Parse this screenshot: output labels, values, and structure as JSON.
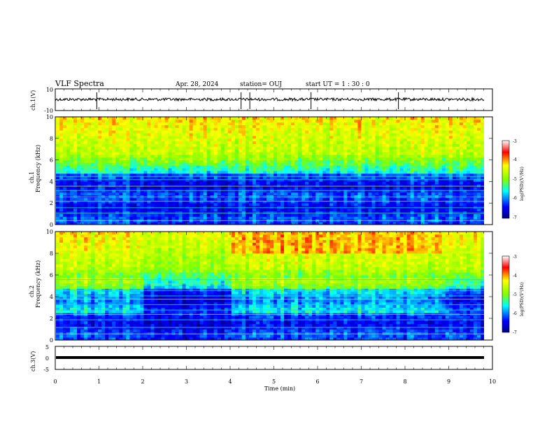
{
  "header": {
    "title": "VLF Spectra",
    "date": "Apr. 28, 2024",
    "station": "station= OUJ",
    "start_ut": "start  UT =   1 : 30 : 0"
  },
  "chart_data": [
    {
      "type": "line",
      "panel": "ch1-waveform",
      "ylabel": "ch.1(V)",
      "ylim": [
        -10,
        10
      ],
      "yticks": [
        "10",
        "-10"
      ],
      "baseline": 0.3,
      "spikes_at_min": [
        0.95,
        4.25,
        4.45,
        5.85,
        7.85
      ]
    },
    {
      "type": "heatmap",
      "panel": "ch1-spectrogram",
      "ylabel_channel": "ch.1",
      "ylabel": "Frequency (kHz)",
      "ylim": [
        0,
        10
      ],
      "yticks": [
        "0",
        "2",
        "4",
        "6",
        "8",
        "10"
      ],
      "colorbar_label": "log(PSD)(V²/Hz)",
      "colorbar_ticks": [
        "-3",
        "-4",
        "-5",
        "-6",
        "-7"
      ],
      "colormap": [
        "#00007f",
        "#0000ff",
        "#00ffff",
        "#7fff00",
        "#ffff00",
        "#ff0000",
        "#ffffff"
      ]
    },
    {
      "type": "heatmap",
      "panel": "ch2-spectrogram",
      "ylabel_channel": "ch.2",
      "ylabel": "Frequency (kHz)",
      "ylim": [
        0,
        10
      ],
      "yticks": [
        "0",
        "2",
        "4",
        "6",
        "8",
        "10"
      ],
      "colorbar_label": "log(PSD)(V²/Hz)",
      "colorbar_ticks": [
        "-3",
        "-4",
        "-5",
        "-6",
        "-7"
      ]
    },
    {
      "type": "line",
      "panel": "ch3-waveform",
      "ylabel": "ch.3(V)",
      "ylim": [
        -5,
        5
      ],
      "yticks": [
        "5",
        "0",
        "-5"
      ],
      "baseline": -0.8
    }
  ],
  "xaxis": {
    "label": "Time (min)",
    "xlim": [
      0,
      10
    ],
    "ticks": [
      "0",
      "1",
      "2",
      "3",
      "4",
      "5",
      "6",
      "7",
      "8",
      "9",
      "10"
    ]
  }
}
